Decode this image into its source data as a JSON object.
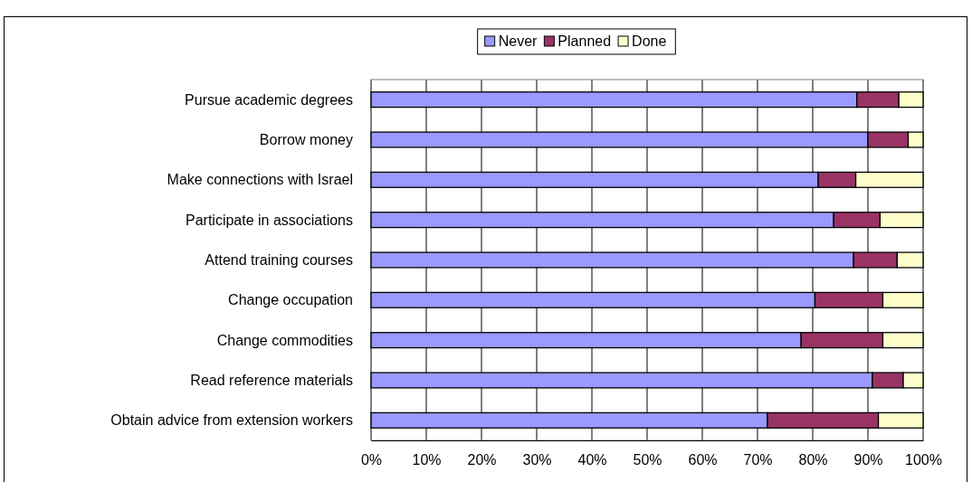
{
  "chart_data": {
    "type": "bar",
    "orientation": "horizontal",
    "stacked": true,
    "categories": [
      "Pursue academic degrees",
      "Borrow money",
      "Make connections with Israel",
      "Participate in associations",
      "Attend training courses",
      "Change occupation",
      "Change commodities",
      "Read reference materials",
      "Obtain advice from extension workers"
    ],
    "series": [
      {
        "name": "Never",
        "color": "#9999ff",
        "values": [
          88.0,
          90.0,
          81.0,
          83.8,
          87.4,
          80.4,
          77.9,
          90.8,
          71.8
        ]
      },
      {
        "name": "Planned",
        "color": "#993366",
        "values": [
          7.6,
          7.3,
          6.8,
          8.4,
          7.9,
          12.3,
          14.8,
          5.6,
          20.1
        ]
      },
      {
        "name": "Done",
        "color": "#ffffcc",
        "values": [
          4.4,
          2.7,
          12.2,
          7.8,
          4.7,
          7.3,
          7.3,
          3.6,
          8.1
        ]
      }
    ],
    "xlim": [
      0,
      100
    ],
    "xticks": [
      {
        "value": 0,
        "label": "0%"
      },
      {
        "value": 10,
        "label": "10%"
      },
      {
        "value": 20,
        "label": "20%"
      },
      {
        "value": 30,
        "label": "30%"
      },
      {
        "value": 40,
        "label": "40%"
      },
      {
        "value": 50,
        "label": "50%"
      },
      {
        "value": 60,
        "label": "60%"
      },
      {
        "value": 70,
        "label": "70%"
      },
      {
        "value": 80,
        "label": "80%"
      },
      {
        "value": 90,
        "label": "90%"
      },
      {
        "value": 100,
        "label": "100%"
      }
    ],
    "grid": "x",
    "legend": "top"
  }
}
